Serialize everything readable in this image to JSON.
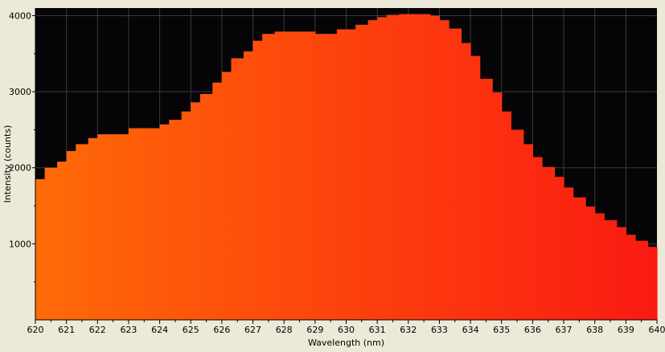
{
  "chart_data": {
    "type": "area",
    "style": "step",
    "title": "",
    "xlabel": "Wavelength (nm)",
    "ylabel": "Intensity (counts)",
    "xlim": [
      620,
      640
    ],
    "ylim": [
      0,
      4100
    ],
    "x_ticks": [
      "620",
      "621",
      "622",
      "623",
      "624",
      "625",
      "626",
      "627",
      "628",
      "629",
      "630",
      "631",
      "632",
      "633",
      "634",
      "635",
      "636",
      "637",
      "638",
      "639",
      "640"
    ],
    "y_ticks": [
      "1000",
      "2000",
      "3000",
      "4000"
    ],
    "grid": true,
    "legend": "none",
    "colors": {
      "plot_background": "#050507",
      "grid": "#3a3a3a",
      "fill_start": "#ff6a08",
      "fill_end": "#fa1a12",
      "window_background": "#ece9d8"
    },
    "series": [
      {
        "x": [
          620.0,
          620.3,
          620.7,
          621.0,
          621.3,
          621.7,
          622.0,
          622.3,
          622.7,
          623.0,
          623.3,
          623.7,
          624.0,
          624.3,
          624.7,
          625.0,
          625.3,
          625.7,
          626.0,
          626.3,
          626.7,
          627.0,
          627.3,
          627.7,
          628.0,
          628.3,
          628.7,
          629.0,
          629.3,
          629.7,
          630.0,
          630.3,
          630.7,
          631.0,
          631.3,
          631.7,
          632.0,
          632.3,
          632.7,
          633.0,
          633.3,
          633.7,
          634.0,
          634.3,
          634.7,
          635.0,
          635.3,
          635.7,
          636.0,
          636.3,
          636.7,
          637.0,
          637.3,
          637.7,
          638.0,
          638.3,
          638.7,
          639.0,
          639.3,
          639.7
        ],
        "values": [
          1850,
          2000,
          2080,
          2220,
          2310,
          2390,
          2440,
          2440,
          2440,
          2520,
          2520,
          2520,
          2570,
          2630,
          2740,
          2860,
          2970,
          3120,
          3260,
          3440,
          3530,
          3670,
          3760,
          3790,
          3790,
          3790,
          3790,
          3760,
          3760,
          3820,
          3820,
          3880,
          3940,
          3980,
          4010,
          4020,
          4020,
          4020,
          4000,
          3940,
          3830,
          3640,
          3470,
          3170,
          2990,
          2740,
          2500,
          2310,
          2140,
          2010,
          1880,
          1740,
          1610,
          1490,
          1400,
          1310,
          1220,
          1120,
          1040,
          960
        ]
      }
    ]
  }
}
